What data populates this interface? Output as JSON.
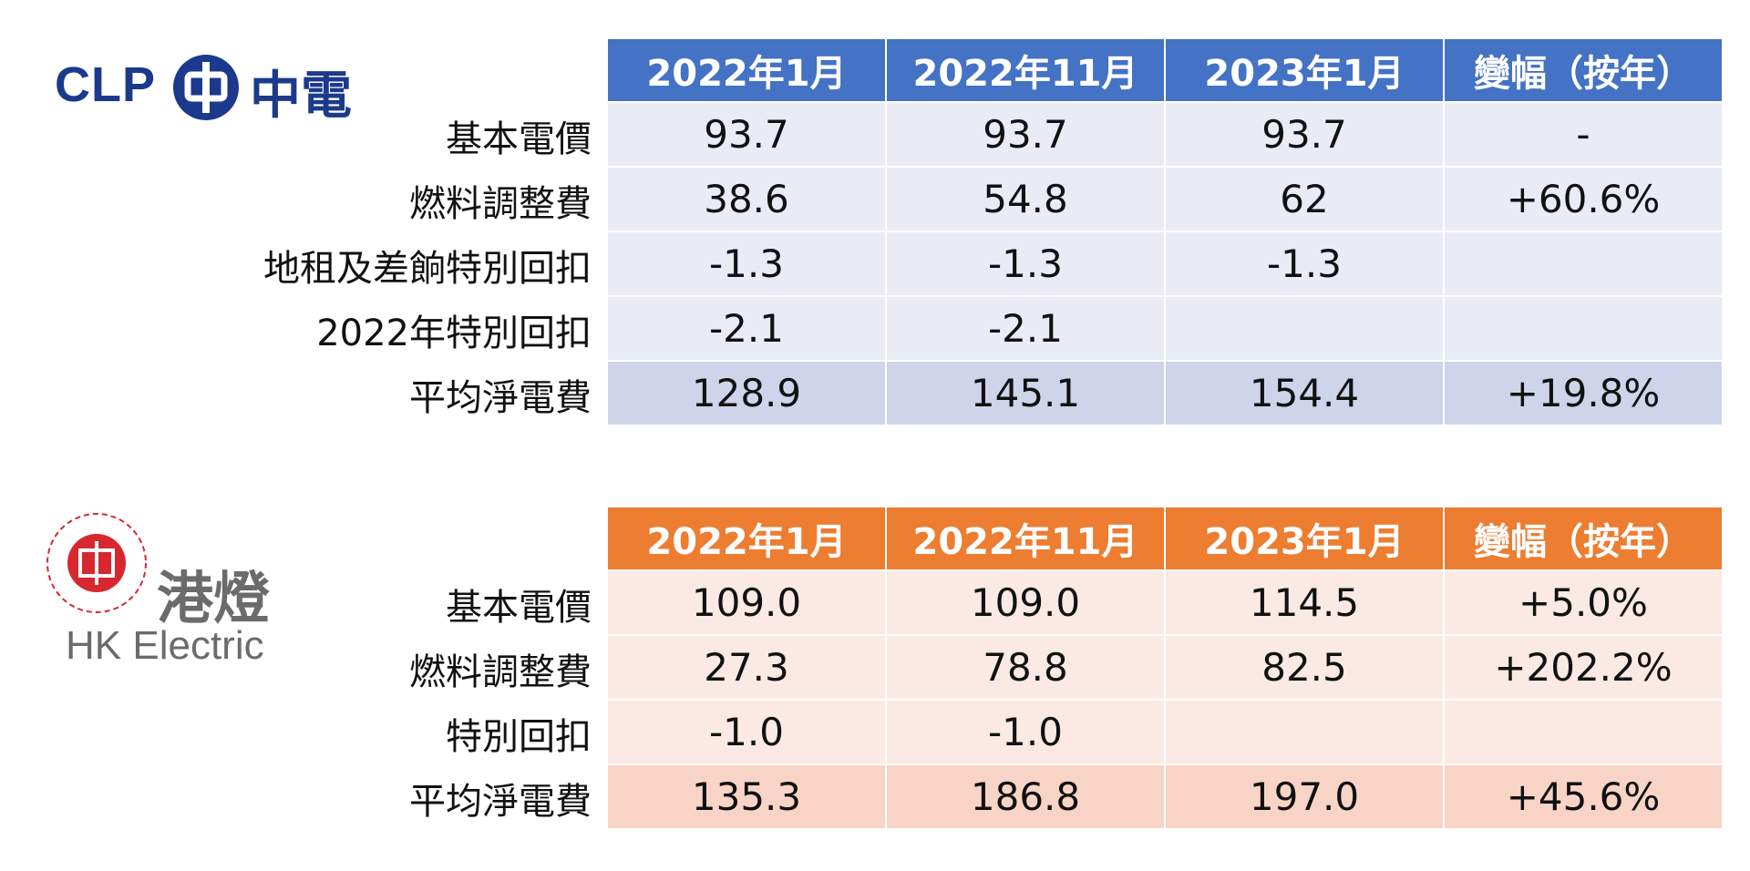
{
  "clp": {
    "logo_text": "CLP",
    "logo_cn": "中電",
    "headers": [
      "2022年1月",
      "2022年11月",
      "2023年1月",
      "變幅（按年）"
    ],
    "rows": [
      {
        "label": "基本電價",
        "cells": [
          "93.7",
          "93.7",
          "93.7",
          "-"
        ]
      },
      {
        "label": "燃料調整費",
        "cells": [
          "38.6",
          "54.8",
          "62",
          "+60.6%"
        ]
      },
      {
        "label": "地租及差餉特別回扣",
        "cells": [
          "-1.3",
          "-1.3",
          "-1.3"
        ]
      },
      {
        "label": "2022年特別回扣",
        "cells": [
          "-2.1",
          "-2.1"
        ]
      },
      {
        "label": "平均淨電費",
        "cells": [
          "128.9",
          "145.1",
          "154.4",
          "+19.8%"
        ]
      }
    ]
  },
  "hke": {
    "logo_cn": "港燈",
    "logo_text": "HK Electric",
    "headers": [
      "2022年1月",
      "2022年11月",
      "2023年1月",
      "變幅（按年）"
    ],
    "rows": [
      {
        "label": "基本電價",
        "cells": [
          "109.0",
          "109.0",
          "114.5",
          "+5.0%"
        ]
      },
      {
        "label": "燃料調整費",
        "cells": [
          "27.3",
          "78.8",
          "82.5",
          "+202.2%"
        ]
      },
      {
        "label": "特別回扣",
        "cells": [
          "-1.0",
          "-1.0"
        ]
      },
      {
        "label": "平均淨電費",
        "cells": [
          "135.3",
          "186.8",
          "197.0",
          "+45.6%"
        ]
      }
    ]
  }
}
